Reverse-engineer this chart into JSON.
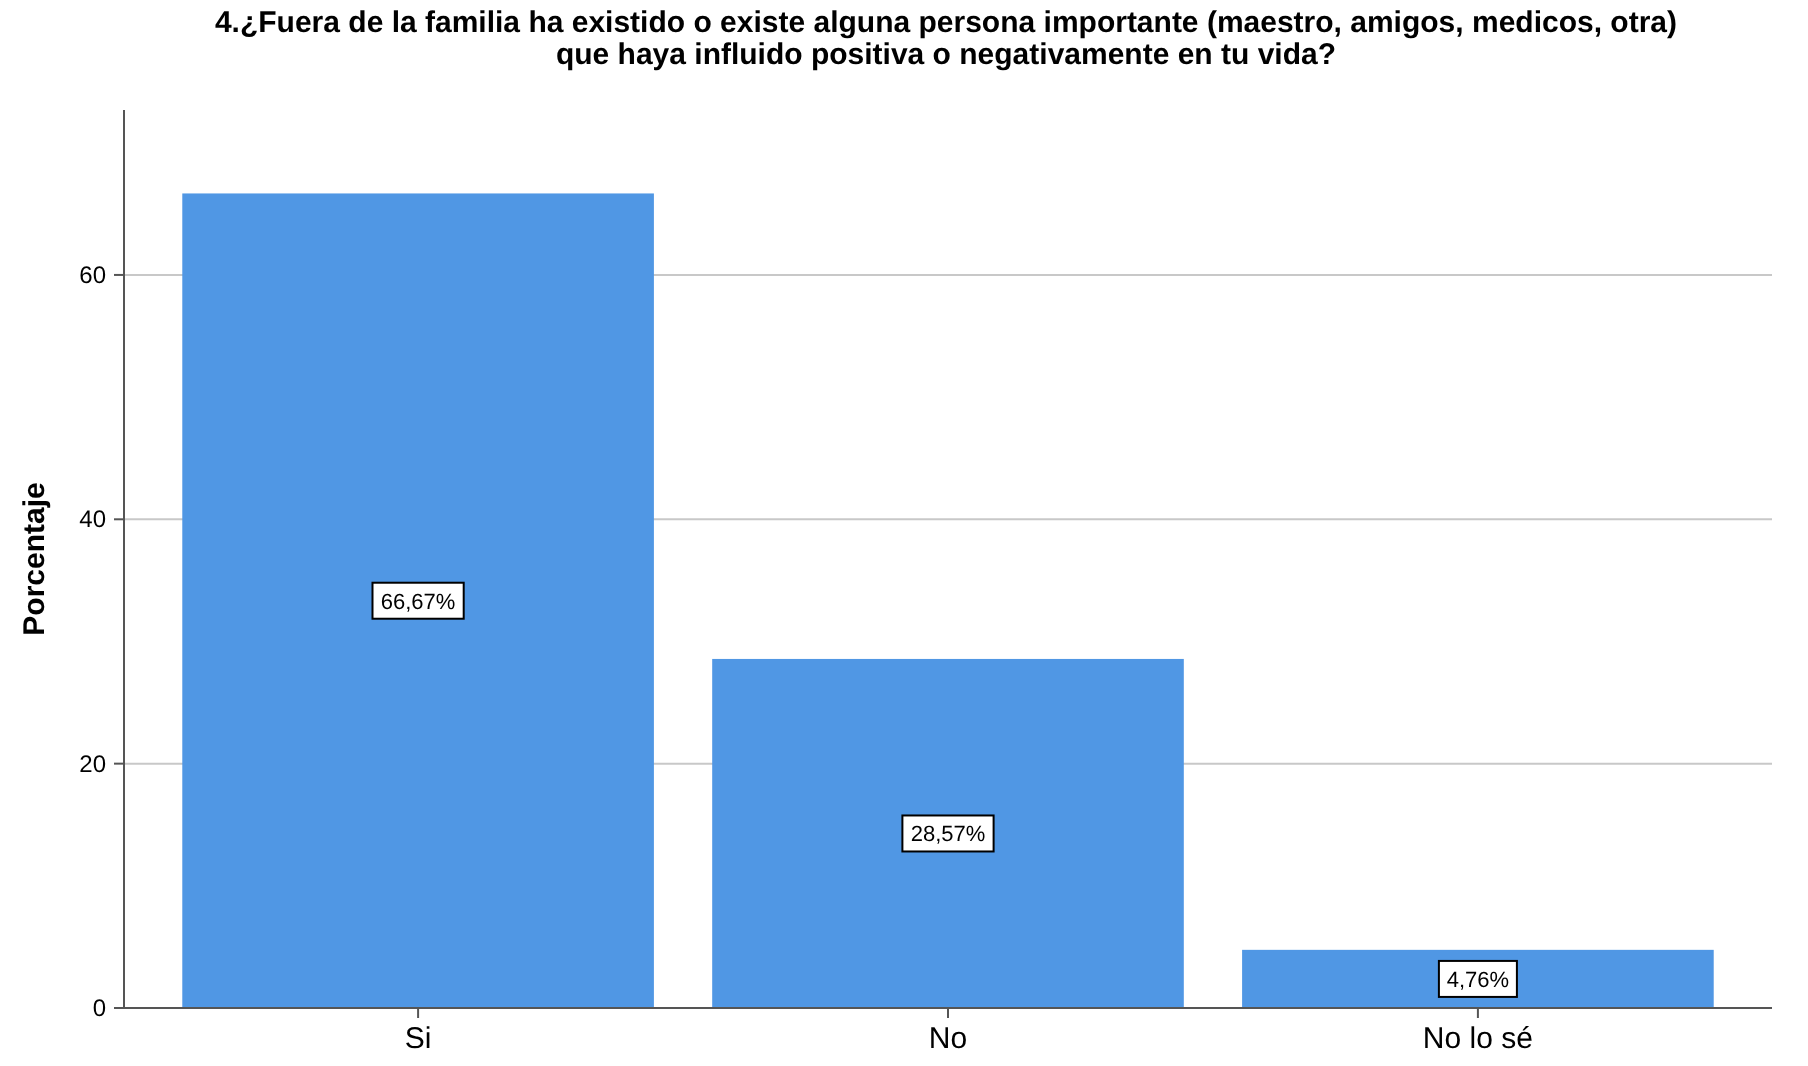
{
  "chart_data": {
    "type": "bar",
    "title": "4.¿Fuera de la familia ha existido o existe alguna persona importante (maestro, amigos, medicos, otra) que haya influido positiva o negativamente en tu vida?",
    "ylabel": "Porcentaje",
    "categories": [
      "Si",
      "No",
      "No lo sé"
    ],
    "values": [
      66.67,
      28.57,
      4.76
    ],
    "value_labels": [
      "66,67%",
      "28,57%",
      "4,76%"
    ],
    "color": "#5097e4",
    "ylim": [
      0,
      73.5
    ],
    "yticks": [
      0,
      20,
      40,
      60
    ],
    "grid": "y"
  }
}
